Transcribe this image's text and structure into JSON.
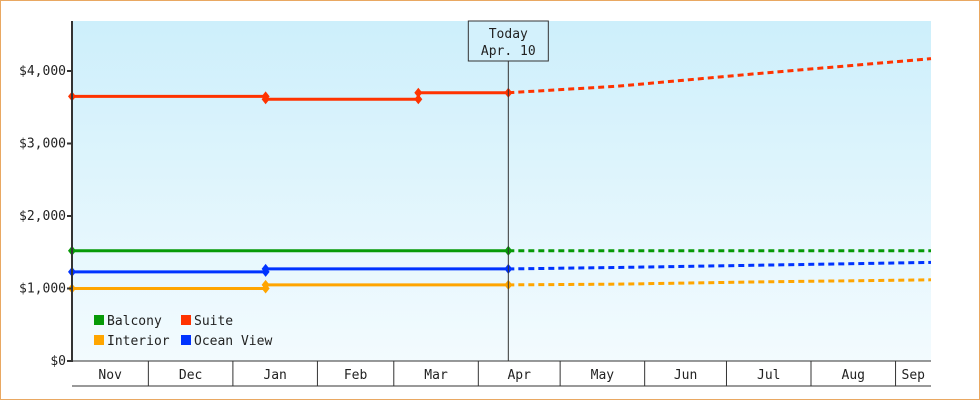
{
  "chart_data": {
    "type": "line",
    "title": "",
    "xlabel": "",
    "ylabel": "",
    "ylim": [
      0,
      4700
    ],
    "yticks": [
      0,
      1000,
      2000,
      3000,
      4000
    ],
    "ytick_labels": [
      "$0",
      "$1,000",
      "$2,000",
      "$3,000",
      "$4,000"
    ],
    "x_unit": "days since Nov 1",
    "xlim": [
      0,
      315
    ],
    "months": [
      {
        "label": "Nov",
        "start": 0,
        "end": 28
      },
      {
        "label": "Dec",
        "start": 28,
        "end": 59
      },
      {
        "label": "Jan",
        "start": 59,
        "end": 90
      },
      {
        "label": "Feb",
        "start": 90,
        "end": 118
      },
      {
        "label": "Mar",
        "start": 118,
        "end": 149
      },
      {
        "label": "Apr",
        "start": 149,
        "end": 179
      },
      {
        "label": "May",
        "start": 179,
        "end": 210
      },
      {
        "label": "Jun",
        "start": 210,
        "end": 240
      },
      {
        "label": "Jul",
        "start": 240,
        "end": 271
      },
      {
        "label": "Aug",
        "start": 271,
        "end": 302
      },
      {
        "label": "Sep",
        "start": 302,
        "end": 318
      }
    ],
    "today": {
      "label_line1": "Today",
      "label_line2": "Apr. 10",
      "x": 160
    },
    "legend": {
      "placement": "bottom-left"
    },
    "series": [
      {
        "name": "Balcony",
        "color": "#079a07",
        "points": [
          [
            0,
            1520
          ],
          [
            160,
            1520
          ]
        ],
        "projection": [
          [
            160,
            1520
          ],
          [
            315,
            1520
          ]
        ]
      },
      {
        "name": "Suite",
        "color": "#ff3300",
        "points": [
          [
            0,
            3650
          ],
          [
            71,
            3650
          ],
          [
            71,
            3610
          ],
          [
            127,
            3610
          ],
          [
            127,
            3700
          ],
          [
            160,
            3700
          ]
        ],
        "projection": [
          [
            160,
            3700
          ],
          [
            200,
            3790
          ],
          [
            250,
            3960
          ],
          [
            315,
            4170
          ]
        ]
      },
      {
        "name": "Interior",
        "color": "#ffa500",
        "points": [
          [
            0,
            1000
          ],
          [
            71,
            1000
          ],
          [
            71,
            1050
          ],
          [
            160,
            1050
          ]
        ],
        "projection": [
          [
            160,
            1050
          ],
          [
            200,
            1060
          ],
          [
            250,
            1090
          ],
          [
            315,
            1120
          ]
        ]
      },
      {
        "name": "Ocean View",
        "color": "#0033ff",
        "points": [
          [
            0,
            1230
          ],
          [
            71,
            1230
          ],
          [
            71,
            1270
          ],
          [
            160,
            1270
          ]
        ],
        "projection": [
          [
            160,
            1270
          ],
          [
            200,
            1290
          ],
          [
            250,
            1320
          ],
          [
            315,
            1360
          ]
        ]
      }
    ]
  }
}
